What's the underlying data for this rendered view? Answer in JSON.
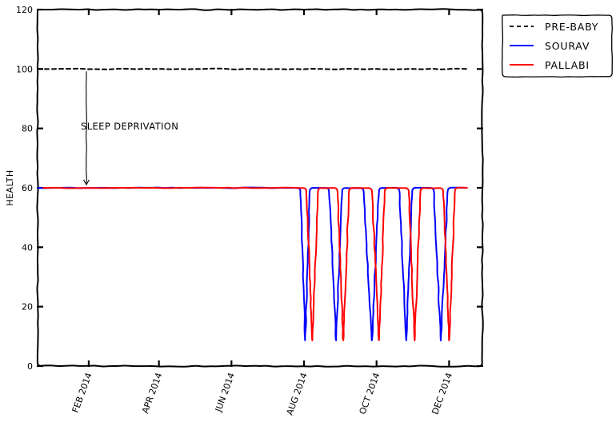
{
  "chart_data": {
    "type": "line",
    "title": "",
    "xlabel": "",
    "ylabel": "HEALTH",
    "ylim": [
      0,
      120
    ],
    "yticks": [
      0,
      20,
      40,
      60,
      80,
      100,
      120
    ],
    "xlim_days": [
      -12,
      362
    ],
    "xticks": [
      {
        "day": 31,
        "label": "FEB 2014"
      },
      {
        "day": 90,
        "label": "APR 2014"
      },
      {
        "day": 151,
        "label": "JUN 2014"
      },
      {
        "day": 212,
        "label": "AUG 2014"
      },
      {
        "day": 273,
        "label": "OCT 2014"
      },
      {
        "day": 334,
        "label": "DEC 2014"
      }
    ],
    "x_unit": "days since 1 Jan 2014",
    "series": [
      {
        "name": "PRE-BABY",
        "color": "#000000",
        "dash": true,
        "points": [
          [
            -12,
            100
          ],
          [
            349,
            100
          ]
        ]
      },
      {
        "name": "SOURAV",
        "color": "#0000ff",
        "dash": false,
        "points": [
          [
            -12,
            60
          ],
          [
            209,
            60
          ],
          [
            213,
            8
          ],
          [
            217,
            60
          ],
          [
            233,
            60
          ],
          [
            239,
            8
          ],
          [
            244,
            60
          ],
          [
            262,
            60
          ],
          [
            269,
            8
          ],
          [
            275,
            60
          ],
          [
            292,
            60
          ],
          [
            298,
            8
          ],
          [
            303,
            60
          ],
          [
            321,
            60
          ],
          [
            327,
            8
          ],
          [
            333,
            60
          ],
          [
            349,
            60
          ]
        ]
      },
      {
        "name": "PALLABI",
        "color": "#ff0000",
        "dash": false,
        "points": [
          [
            -7,
            60
          ],
          [
            214,
            60
          ],
          [
            219,
            8
          ],
          [
            224,
            60
          ],
          [
            240,
            60
          ],
          [
            245,
            8
          ],
          [
            250,
            60
          ],
          [
            269,
            60
          ],
          [
            275,
            8
          ],
          [
            280,
            60
          ],
          [
            300,
            60
          ],
          [
            305,
            8
          ],
          [
            310,
            60
          ],
          [
            329,
            60
          ],
          [
            334,
            8
          ],
          [
            339,
            60
          ],
          [
            349,
            60
          ]
        ]
      }
    ],
    "annotations": [
      {
        "text": "SLEEP DEPRIVATION",
        "arrow_from": [
          29,
          100
        ],
        "arrow_to": [
          29,
          60
        ]
      }
    ],
    "legend": {
      "position": "upper-right-outside",
      "entries": [
        {
          "label": "PRE-BABY",
          "color": "#000000",
          "dash": true
        },
        {
          "label": "SOURAV",
          "color": "#0000ff",
          "dash": false
        },
        {
          "label": "PALLABI",
          "color": "#ff0000",
          "dash": false
        }
      ]
    },
    "style": "xkcd"
  }
}
